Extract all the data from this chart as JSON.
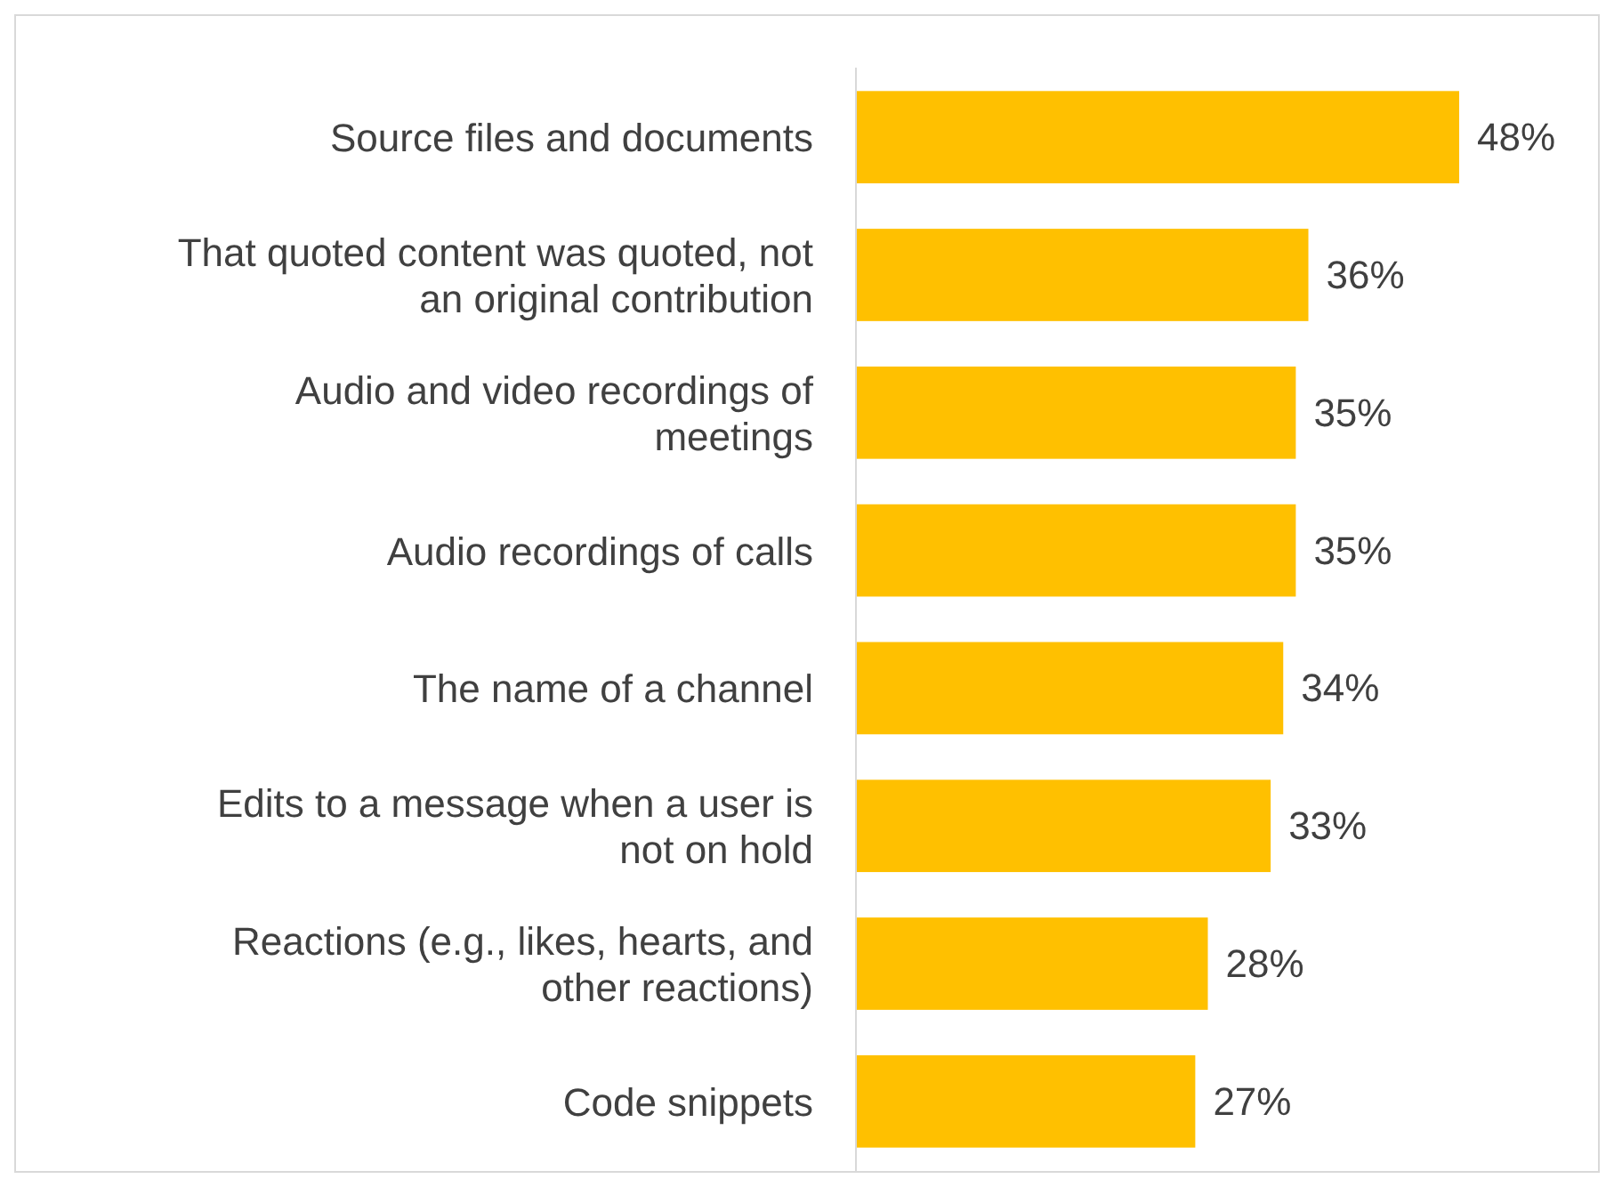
{
  "chart_data": {
    "type": "bar",
    "orientation": "horizontal",
    "categories": [
      "Source files and documents",
      "That quoted content was quoted, not an original contribution",
      "Audio and video recordings of meetings",
      "Audio recordings of calls",
      "The name of a channel",
      "Edits to a message when a user is not on hold",
      "Reactions (e.g., likes, hearts, and other reactions)",
      "Code snippets"
    ],
    "values": [
      48,
      36,
      35,
      35,
      34,
      33,
      28,
      27
    ],
    "value_labels": [
      "48%",
      "36%",
      "35%",
      "35%",
      "34%",
      "33%",
      "28%",
      "27%"
    ],
    "color": "#ffc000"
  }
}
